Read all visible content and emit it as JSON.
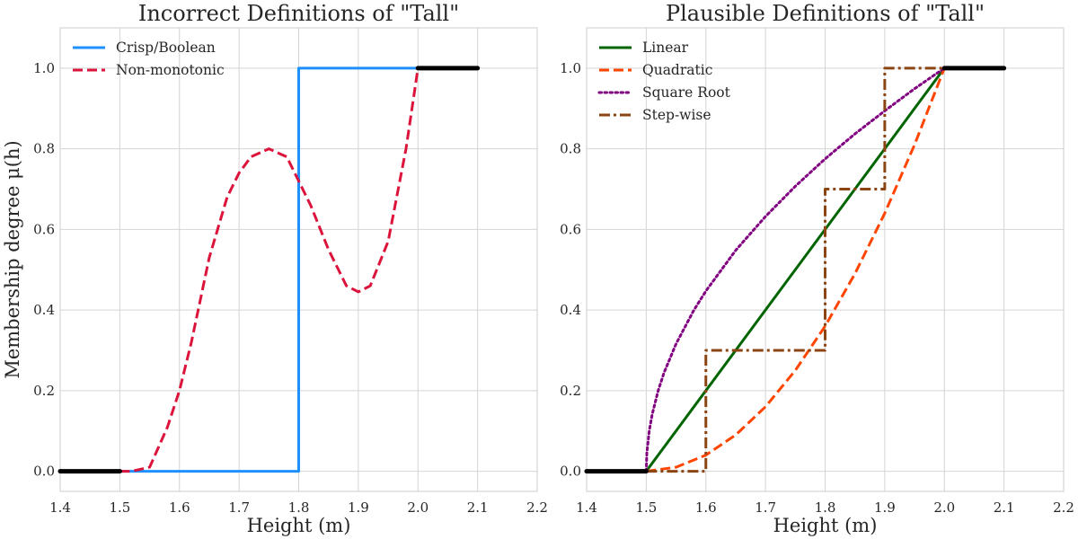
{
  "chart_data": [
    {
      "type": "line",
      "title": "Incorrect Definitions of \"Tall\"",
      "xlabel": "Height (m)",
      "ylabel": "Membership degree μ(h)",
      "xlim": [
        1.4,
        2.2
      ],
      "ylim": [
        -0.05,
        1.1
      ],
      "xticks": [
        "1.4",
        "1.5",
        "1.6",
        "1.7",
        "1.8",
        "1.9",
        "2.0",
        "2.1",
        "2.2"
      ],
      "yticks": [
        "0.0",
        "0.2",
        "0.4",
        "0.6",
        "0.8",
        "1.0"
      ],
      "grid": true,
      "legend_position": "top-left",
      "series": [
        {
          "name": "Crisp/Boolean",
          "color": "#1e90ff",
          "style": "solid",
          "x": [
            1.5,
            1.8,
            1.8,
            2.0
          ],
          "y": [
            0,
            0,
            1,
            1
          ]
        },
        {
          "name": "Non-monotonic",
          "color": "#dc143c",
          "style": "dashed",
          "x": [
            1.5,
            1.52,
            1.55,
            1.58,
            1.6,
            1.62,
            1.65,
            1.68,
            1.7,
            1.72,
            1.75,
            1.78,
            1.8,
            1.82,
            1.85,
            1.88,
            1.9,
            1.92,
            1.95,
            1.98,
            2.0
          ],
          "y": [
            0,
            0,
            0.01,
            0.11,
            0.2,
            0.32,
            0.53,
            0.68,
            0.74,
            0.78,
            0.8,
            0.78,
            0.72,
            0.66,
            0.55,
            0.46,
            0.445,
            0.46,
            0.57,
            0.8,
            1.0
          ]
        },
        {
          "name": "",
          "color": "#000000",
          "style": "solid-thick",
          "x": [
            1.4,
            1.5
          ],
          "y": [
            0,
            0
          ]
        },
        {
          "name": "",
          "color": "#000000",
          "style": "solid-thick",
          "x": [
            2.0,
            2.1
          ],
          "y": [
            1,
            1
          ]
        }
      ]
    },
    {
      "type": "line",
      "title": "Plausible Definitions of \"Tall\"",
      "xlabel": "Height (m)",
      "ylabel": "",
      "xlim": [
        1.4,
        2.2
      ],
      "ylim": [
        -0.05,
        1.1
      ],
      "xticks": [
        "1.4",
        "1.5",
        "1.6",
        "1.7",
        "1.8",
        "1.9",
        "2.0",
        "2.1",
        "2.2"
      ],
      "yticks": [
        "0.0",
        "0.2",
        "0.4",
        "0.6",
        "0.8",
        "1.0"
      ],
      "grid": true,
      "legend_position": "top-left",
      "series": [
        {
          "name": "Linear",
          "color": "#006400",
          "style": "solid",
          "x": [
            1.5,
            2.0
          ],
          "y": [
            0,
            1
          ]
        },
        {
          "name": "Quadratic",
          "color": "#ff4500",
          "style": "dashed",
          "x": [
            1.5,
            1.55,
            1.6,
            1.65,
            1.7,
            1.75,
            1.8,
            1.85,
            1.9,
            1.95,
            2.0
          ],
          "y": [
            0,
            0.01,
            0.04,
            0.09,
            0.16,
            0.25,
            0.36,
            0.49,
            0.64,
            0.81,
            1.0
          ]
        },
        {
          "name": "Square Root",
          "color": "#800080",
          "style": "dotted",
          "x": [
            1.5,
            1.501,
            1.505,
            1.51,
            1.52,
            1.53,
            1.55,
            1.58,
            1.6,
            1.65,
            1.7,
            1.75,
            1.8,
            1.85,
            1.9,
            1.95,
            2.0
          ],
          "y": [
            0,
            0.045,
            0.1,
            0.141,
            0.2,
            0.245,
            0.316,
            0.4,
            0.447,
            0.548,
            0.632,
            0.707,
            0.775,
            0.837,
            0.894,
            0.949,
            1.0
          ]
        },
        {
          "name": "Step-wise",
          "color": "#8b4513",
          "style": "dashdot",
          "x": [
            1.5,
            1.6,
            1.6,
            1.8,
            1.8,
            1.9,
            1.9,
            2.0
          ],
          "y": [
            0,
            0,
            0.3,
            0.3,
            0.7,
            0.7,
            1.0,
            1.0
          ]
        },
        {
          "name": "",
          "color": "#000000",
          "style": "solid-thick",
          "x": [
            1.4,
            1.5
          ],
          "y": [
            0,
            0
          ]
        },
        {
          "name": "",
          "color": "#000000",
          "style": "solid-thick",
          "x": [
            2.0,
            2.1
          ],
          "y": [
            1,
            1
          ]
        }
      ]
    }
  ]
}
